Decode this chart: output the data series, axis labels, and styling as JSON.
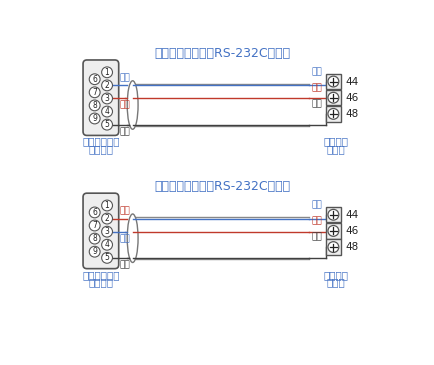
{
  "title1": "计算机与仪表间的RS-232C通讯线",
  "title2": "打印机与仪表间的RS-232C通讯线",
  "diagram1": {
    "wire_colors_left": [
      {
        "label": "蓝色",
        "pin": "2",
        "color": "#4472c4"
      },
      {
        "label": "红色",
        "pin": "3",
        "color": "#c0392b"
      },
      {
        "label": "黒色",
        "pin": "5",
        "color": "#404040"
      }
    ],
    "wire_colors_right": [
      {
        "label": "蓝色",
        "terminal": 44,
        "color": "#4472c4"
      },
      {
        "label": "红色",
        "terminal": 46,
        "color": "#c0392b"
      },
      {
        "label": "黒色",
        "terminal": 48,
        "color": "#404040"
      }
    ],
    "label_left1": "九芯孔型插头",
    "label_left2": "计算机侧",
    "label_right1": "接线端子",
    "label_right2": "仪表侧"
  },
  "diagram2": {
    "wire_colors_left": [
      {
        "label": "红色",
        "pin": "2",
        "color": "#c0392b"
      },
      {
        "label": "蓝色",
        "pin": "3",
        "color": "#4472c4"
      },
      {
        "label": "黒色",
        "pin": "5",
        "color": "#404040"
      }
    ],
    "wire_colors_right": [
      {
        "label": "蓝色",
        "terminal": 44,
        "color": "#4472c4"
      },
      {
        "label": "红色",
        "terminal": 46,
        "color": "#c0392b"
      },
      {
        "label": "黒色",
        "terminal": 48,
        "color": "#404040"
      }
    ],
    "label_left1": "九芯孔型插头",
    "label_left2": "打印机侧",
    "label_right1": "接线端子",
    "label_right2": "仪表侧"
  },
  "text_color_title": "#4472c4",
  "text_color_label": "#4472c4",
  "bg_color": "#ffffff"
}
